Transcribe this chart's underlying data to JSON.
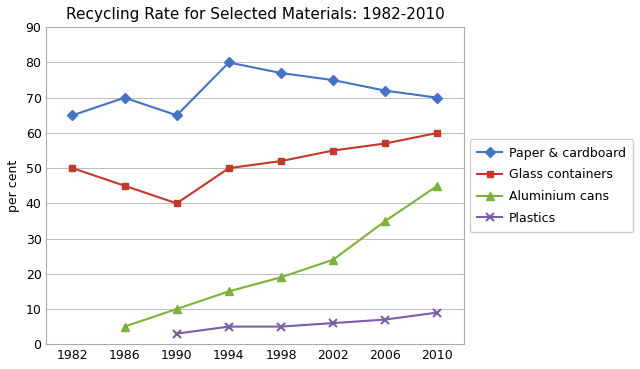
{
  "title": "Recycling Rate for Selected Materials: 1982-2010",
  "ylabel": "per cent",
  "years": [
    1982,
    1986,
    1990,
    1994,
    1998,
    2002,
    2006,
    2010
  ],
  "series": [
    {
      "label": "Paper & cardboard",
      "values": [
        65,
        70,
        65,
        80,
        77,
        75,
        72,
        70
      ],
      "color": "#4472C4",
      "marker": "D",
      "markersize": 5,
      "linewidth": 1.5
    },
    {
      "label": "Glass containers",
      "values": [
        50,
        45,
        40,
        50,
        52,
        55,
        57,
        60
      ],
      "color": "#C0392B",
      "marker": "s",
      "markersize": 5,
      "linewidth": 1.5
    },
    {
      "label": "Aluminium cans",
      "values": [
        null,
        5,
        10,
        15,
        19,
        24,
        35,
        45
      ],
      "color": "#7DB23A",
      "marker": "^",
      "markersize": 6,
      "linewidth": 1.5
    },
    {
      "label": "Plastics",
      "values": [
        null,
        null,
        3,
        5,
        5,
        6,
        7,
        9
      ],
      "color": "#7B5EA7",
      "marker": "x",
      "markersize": 6,
      "linewidth": 1.5
    }
  ],
  "ylim": [
    0,
    90
  ],
  "yticks": [
    0,
    10,
    20,
    30,
    40,
    50,
    60,
    70,
    80,
    90
  ],
  "xticks": [
    1982,
    1986,
    1990,
    1994,
    1998,
    2002,
    2006,
    2010
  ],
  "xlim": [
    1980,
    2012
  ],
  "grid_color": "#bbbbbb",
  "spine_color": "#aaaaaa",
  "background_color": "#ffffff",
  "title_fontsize": 11,
  "axis_fontsize": 9,
  "tick_fontsize": 9,
  "legend_fontsize": 9
}
